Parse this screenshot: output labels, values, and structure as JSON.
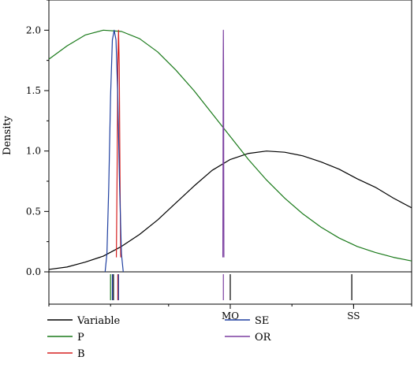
{
  "chart_data": {
    "type": "line",
    "title": "",
    "xlabel": "",
    "ylabel": "Density",
    "ylim": [
      0,
      2.25
    ],
    "xlim": [
      0,
      1
    ],
    "grid": false,
    "legend_position": "bottom",
    "y_ticks": [
      "0.0",
      "0.5",
      "1.0",
      "1.5",
      "2.0"
    ],
    "y_tick_values": [
      0,
      0.5,
      1.0,
      1.5,
      2.0
    ],
    "x_tick_labels": [
      {
        "label": "MQ",
        "x": 0.5
      },
      {
        "label": "SS",
        "x": 0.84
      }
    ],
    "x_minor_ticks": [
      0.0,
      0.17,
      0.33,
      0.5,
      0.67,
      0.84,
      1.0
    ],
    "series": [
      {
        "name": "Variable",
        "color": "#000000",
        "x": [
          0.0,
          0.05,
          0.1,
          0.15,
          0.2,
          0.25,
          0.3,
          0.35,
          0.4,
          0.45,
          0.5,
          0.55,
          0.6,
          0.65,
          0.7,
          0.75,
          0.8,
          0.85,
          0.9,
          0.95,
          1.0
        ],
        "y": [
          0.02,
          0.04,
          0.08,
          0.13,
          0.21,
          0.31,
          0.43,
          0.57,
          0.71,
          0.84,
          0.93,
          0.98,
          1.0,
          0.99,
          0.96,
          0.91,
          0.85,
          0.77,
          0.7,
          0.61,
          0.53
        ]
      },
      {
        "name": "P",
        "color": "#1a7a1a",
        "x": [
          0.0,
          0.05,
          0.1,
          0.15,
          0.2,
          0.25,
          0.3,
          0.35,
          0.4,
          0.45,
          0.5,
          0.55,
          0.6,
          0.65,
          0.7,
          0.75,
          0.8,
          0.85,
          0.9,
          0.95,
          1.0
        ],
        "y": [
          1.76,
          1.87,
          1.96,
          2.0,
          1.99,
          1.93,
          1.82,
          1.67,
          1.5,
          1.31,
          1.12,
          0.93,
          0.76,
          0.61,
          0.48,
          0.37,
          0.28,
          0.21,
          0.16,
          0.12,
          0.09
        ]
      },
      {
        "name": "B",
        "color": "#d62020",
        "x": [
          0.186,
          0.188,
          0.19,
          0.192,
          0.194,
          0.196,
          0.198
        ],
        "y": [
          0.12,
          0.8,
          1.7,
          2.0,
          1.7,
          0.8,
          0.12
        ]
      },
      {
        "name": "SE",
        "color": "#1f3fa0",
        "x": [
          0.155,
          0.16,
          0.165,
          0.17,
          0.175,
          0.18,
          0.185,
          0.19,
          0.195,
          0.2,
          0.205
        ],
        "y": [
          0.0,
          0.15,
          0.7,
          1.45,
          1.92,
          2.0,
          1.92,
          1.45,
          0.7,
          0.15,
          0.0
        ]
      },
      {
        "name": "OR",
        "color": "#7b3fa0",
        "x": [
          0.4795,
          0.48,
          0.4805,
          0.481,
          0.4815,
          0.482,
          0.4825
        ],
        "y": [
          0.12,
          0.8,
          1.7,
          2.0,
          1.7,
          0.8,
          0.12
        ]
      }
    ],
    "rug": [
      {
        "series": "P",
        "x": 0.17
      },
      {
        "series": "SE",
        "x": 0.175
      },
      {
        "series": "Variable",
        "x": 0.178
      },
      {
        "series": "B",
        "x": 0.19
      },
      {
        "series": "SE",
        "x": 0.192
      },
      {
        "series": "OR",
        "x": 0.481
      },
      {
        "series": "Variable",
        "x": 0.5
      },
      {
        "series": "Variable",
        "x": 0.835
      }
    ]
  },
  "legend": {
    "items": [
      {
        "label": "Variable",
        "color": "#000000"
      },
      {
        "label": "P",
        "color": "#1a7a1a"
      },
      {
        "label": "B",
        "color": "#d62020"
      },
      {
        "label": "SE",
        "color": "#1f3fa0"
      },
      {
        "label": "OR",
        "color": "#7b3fa0"
      }
    ]
  }
}
